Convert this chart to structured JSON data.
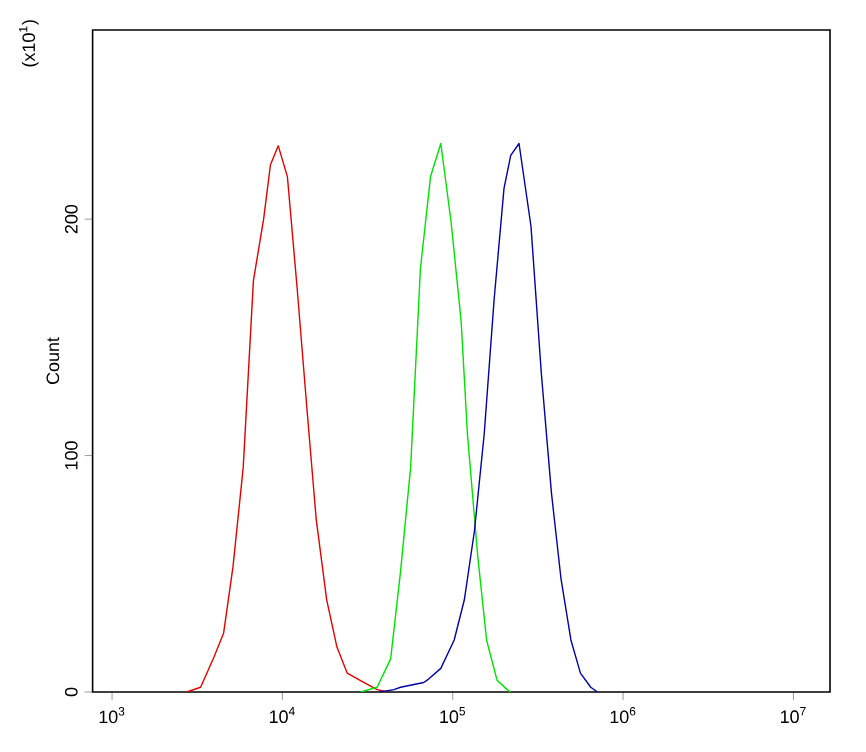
{
  "chart_data": {
    "type": "line",
    "ylabel": "Count",
    "log": "x",
    "xlim": [
      769,
      16400000
    ],
    "ylim": [
      0,
      280
    ],
    "xticks": [
      {
        "value": 1000,
        "label": "10$^{3}$"
      },
      {
        "value": 10000,
        "label": "10$^{4}$"
      },
      {
        "value": 100000,
        "label": "10$^{5}$"
      },
      {
        "value": 1000000,
        "label": "10$^{6}$"
      },
      {
        "value": 10000000,
        "label": "10$^{7}$"
      }
    ],
    "yticks": [
      0,
      100,
      200
    ],
    "annotations": [
      "(x10$^{1}$)"
    ],
    "series": [
      {
        "color": "#e00000",
        "x": [
          2750,
          3310,
          3980,
          4520,
          5130,
          5890,
          6760,
          7760,
          8510,
          9460,
          10700,
          12200,
          14000,
          15800,
          18200,
          20900,
          24000,
          30200,
          36000,
          41200
        ],
        "values": [
          0,
          2,
          15,
          25,
          53,
          95,
          174,
          200,
          223,
          231,
          218,
          171,
          118,
          73,
          39,
          19,
          8,
          4,
          1,
          0
        ]
      },
      {
        "color": "#00e000",
        "x": [
          28800,
          36000,
          43200,
          49400,
          56600,
          64600,
          74100,
          85100,
          97700,
          112000,
          122000,
          140000,
          158000,
          182000,
          209000,
          219000
        ],
        "values": [
          0,
          2,
          14,
          51,
          95,
          179,
          218,
          232,
          199,
          157,
          109,
          58,
          22,
          5,
          1,
          0
        ]
      },
      {
        "color": "#0000a0",
        "x": [
          37200,
          45200,
          49400,
          67600,
          70800,
          85100,
          102000,
          117000,
          134000,
          153000,
          175000,
          200000,
          219000,
          245000,
          288000,
          331000,
          380000,
          432000,
          494000,
          562000,
          646000,
          708000
        ],
        "values": [
          0,
          1,
          2,
          4,
          5,
          10,
          22,
          39,
          68,
          109,
          166,
          213,
          227,
          232,
          197,
          135,
          84,
          48,
          22,
          8,
          2,
          0
        ]
      }
    ]
  }
}
